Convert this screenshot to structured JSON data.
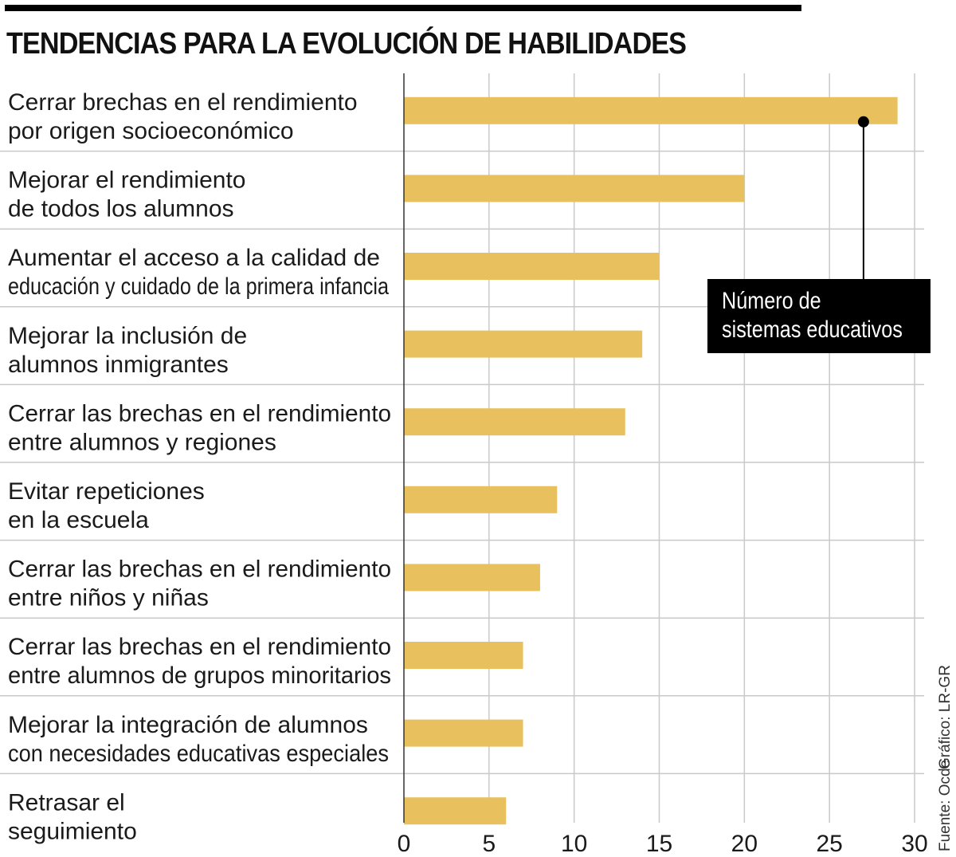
{
  "title": "TENDENCIAS PARA LA EVOLUCIÓN DE HABILIDADES",
  "annotation": {
    "line1": "Número de",
    "line2": "sistemas educativos",
    "marker_value": 27
  },
  "credit": "Gráfico: LR-GR",
  "source": "Fuente: Ocde",
  "colors": {
    "bar": "#E8C05E",
    "grid": "#c9c9c9",
    "axis": "#333333",
    "annotation_bg": "#000000"
  },
  "chart_data": {
    "type": "bar",
    "orientation": "horizontal",
    "title": "TENDENCIAS PARA LA EVOLUCIÓN DE HABILIDADES",
    "xlabel": "Número de sistemas educativos",
    "ylabel": "",
    "xlim": [
      0,
      30
    ],
    "xticks": [
      0,
      5,
      10,
      15,
      20,
      25,
      30
    ],
    "grid": true,
    "categories": [
      [
        "Cerrar brechas en el rendimiento",
        "por origen socioeconómico"
      ],
      [
        "Mejorar el rendimiento",
        "de todos los alumnos"
      ],
      [
        "Aumentar el acceso a la calidad de",
        "educación y cuidado de la primera infancia"
      ],
      [
        "Mejorar la inclusión de",
        "alumnos inmigrantes"
      ],
      [
        "Cerrar las brechas en el rendimiento",
        "entre alumnos y regiones"
      ],
      [
        "Evitar repeticiones",
        "en la escuela"
      ],
      [
        "Cerrar las brechas en el rendimiento",
        "entre niños y niñas"
      ],
      [
        "Cerrar las brechas en el rendimiento",
        "entre alumnos de grupos minoritarios"
      ],
      [
        "Mejorar la integración de alumnos",
        "con necesidades educativas especiales"
      ],
      [
        "Retrasar el",
        "seguimiento"
      ]
    ],
    "values": [
      29,
      20,
      15,
      14,
      13,
      9,
      8,
      7,
      7,
      6
    ]
  }
}
